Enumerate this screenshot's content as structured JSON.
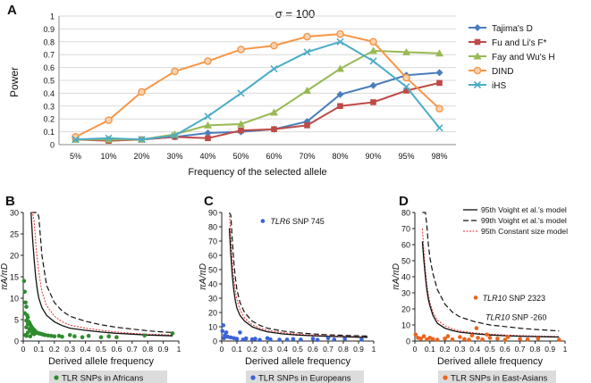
{
  "chart_data": [
    {
      "panel": "A",
      "type": "line",
      "title": "σ = 100",
      "xlabel": "Frequency of the selected allele",
      "ylabel": "Power",
      "categories": [
        "5%",
        "10%",
        "20%",
        "30%",
        "40%",
        "50%",
        "60%",
        "70%",
        "80%",
        "90%",
        "95%",
        "98%"
      ],
      "ylim": [
        0,
        1
      ],
      "yticks": [
        "0",
        "0.1",
        "0.2",
        "0.3",
        "0.4",
        "0.5",
        "0.6",
        "0.7",
        "0.8",
        "0.9",
        "1"
      ],
      "grid": "horizontal",
      "legend_position": "right",
      "series": [
        {
          "name": "Tajima's D",
          "color": "#4a7ebb",
          "marker": "diamond",
          "values": [
            0.04,
            0.04,
            0.04,
            0.06,
            0.09,
            0.1,
            0.12,
            0.18,
            0.39,
            0.46,
            0.54,
            0.56
          ]
        },
        {
          "name": "Fu and Li's F*",
          "color": "#be4b48",
          "marker": "square",
          "values": [
            0.04,
            0.03,
            0.04,
            0.06,
            0.05,
            0.11,
            0.12,
            0.15,
            0.3,
            0.33,
            0.42,
            0.48
          ]
        },
        {
          "name": "Fay and Wu's H",
          "color": "#98b954",
          "marker": "triangle",
          "values": [
            0.04,
            0.04,
            0.04,
            0.08,
            0.15,
            0.16,
            0.25,
            0.42,
            0.59,
            0.73,
            0.72,
            0.71
          ]
        },
        {
          "name": "DIND",
          "color": "#f79646",
          "marker": "circle",
          "values": [
            0.06,
            0.19,
            0.41,
            0.57,
            0.65,
            0.74,
            0.77,
            0.84,
            0.86,
            0.8,
            0.52,
            0.28
          ]
        },
        {
          "name": "iHS",
          "color": "#4bacc6",
          "marker": "x",
          "values": [
            0.04,
            0.05,
            0.04,
            0.07,
            0.22,
            0.4,
            0.59,
            0.72,
            0.8,
            0.65,
            0.45,
            0.13
          ]
        }
      ]
    },
    {
      "panel": "B",
      "type": "scatter",
      "xlabel": "Derived allele frequency",
      "ylabel": "πA/πD",
      "xlim": [
        0,
        1
      ],
      "ylim": [
        0,
        30
      ],
      "xticks": [
        "0",
        "0.1",
        "0.2",
        "0.3",
        "0.4",
        "0.5",
        "0.6",
        "0.7",
        "0.8",
        "0.9",
        "1"
      ],
      "yticks": [
        "0",
        "5",
        "10",
        "15",
        "20",
        "25",
        "30"
      ],
      "legend": "TLR SNPs in Africans",
      "point_color": "#2e8b2e",
      "points": [
        [
          0.005,
          14
        ],
        [
          0.01,
          11.5
        ],
        [
          0.015,
          9
        ],
        [
          0.02,
          8
        ],
        [
          0.01,
          6.5
        ],
        [
          0.025,
          6
        ],
        [
          0.03,
          5.5
        ],
        [
          0.02,
          4.8
        ],
        [
          0.035,
          4.5
        ],
        [
          0.04,
          4.2
        ],
        [
          0.03,
          4
        ],
        [
          0.045,
          3.8
        ],
        [
          0.05,
          3.5
        ],
        [
          0.02,
          3.2
        ],
        [
          0.055,
          3.2
        ],
        [
          0.06,
          3
        ],
        [
          0.04,
          2.8
        ],
        [
          0.065,
          2.7
        ],
        [
          0.07,
          2.6
        ],
        [
          0.05,
          2.4
        ],
        [
          0.075,
          2.3
        ],
        [
          0.08,
          2.2
        ],
        [
          0.03,
          2
        ],
        [
          0.085,
          2
        ],
        [
          0.09,
          1.9
        ],
        [
          0.06,
          1.8
        ],
        [
          0.1,
          1.8
        ],
        [
          0.11,
          1.7
        ],
        [
          0.07,
          1.6
        ],
        [
          0.12,
          1.6
        ],
        [
          0.13,
          1.5
        ],
        [
          0.14,
          1.4
        ],
        [
          0.015,
          1.4
        ],
        [
          0.16,
          1.3
        ],
        [
          0.02,
          1.2
        ],
        [
          0.18,
          1.2
        ],
        [
          0.045,
          1.1
        ],
        [
          0.2,
          1.1
        ],
        [
          0.23,
          1.2
        ],
        [
          0.25,
          1
        ],
        [
          0.3,
          1.4
        ],
        [
          0.33,
          1.1
        ],
        [
          0.38,
          0.9
        ],
        [
          0.42,
          1.2
        ],
        [
          0.5,
          0.9
        ],
        [
          0.55,
          1.1
        ],
        [
          0.6,
          0.9
        ],
        [
          0.78,
          1.3
        ],
        [
          0.96,
          1.8
        ]
      ],
      "curves": {
        "x": [
          0.05,
          0.06,
          0.07,
          0.08,
          0.09,
          0.1,
          0.12,
          0.15,
          0.2,
          0.25,
          0.3,
          0.4,
          0.5,
          0.6,
          0.7,
          0.8,
          0.9,
          0.96
        ],
        "voight95": [
          30,
          24,
          19,
          15,
          12,
          10,
          7.8,
          6,
          4.5,
          3.6,
          3,
          2.5,
          2.1,
          1.8,
          1.6,
          1.4,
          1.3,
          1.2
        ],
        "voight99": [
          30,
          30,
          30,
          30,
          30,
          29,
          20,
          13,
          9,
          7,
          5.8,
          4.6,
          3.8,
          3.2,
          2.8,
          2.4,
          2.1,
          2
        ],
        "constant95": [
          30,
          30,
          28,
          23,
          19,
          16,
          11.5,
          8.3,
          5.8,
          4.5,
          3.7,
          3,
          2.5,
          2.1,
          1.8,
          1.6,
          1.5,
          1.4
        ]
      }
    },
    {
      "panel": "C",
      "type": "scatter",
      "xlabel": "Derived allele frequency",
      "ylabel": "πA/πD",
      "xlim": [
        0,
        1
      ],
      "ylim": [
        0,
        90
      ],
      "xticks": [
        "0",
        "0.1",
        "0.2",
        "0.3",
        "0.4",
        "0.5",
        "0.6",
        "0.7",
        "0.8",
        "0.9",
        "1"
      ],
      "yticks": [
        "0",
        "10",
        "20",
        "30",
        "40",
        "50",
        "60",
        "70",
        "80",
        "90"
      ],
      "legend": "TLR SNPs in Europeans",
      "point_color": "#3a63d8",
      "annotation": {
        "gene": "TLR6",
        "text": "SNP 745"
      },
      "points": [
        [
          0.27,
          84
        ],
        [
          0.01,
          11
        ],
        [
          0.005,
          7
        ],
        [
          0.03,
          6
        ],
        [
          0.02,
          4
        ],
        [
          0.04,
          3
        ],
        [
          0.06,
          2.5
        ],
        [
          0.08,
          2
        ],
        [
          0.015,
          2
        ],
        [
          0.1,
          1.5
        ],
        [
          0.12,
          6
        ],
        [
          0.14,
          1
        ],
        [
          0.16,
          1.8
        ],
        [
          0.2,
          1.2
        ],
        [
          0.22,
          1.6
        ],
        [
          0.25,
          0.8
        ],
        [
          0.3,
          2
        ],
        [
          0.32,
          1.2
        ],
        [
          0.38,
          0.9
        ],
        [
          0.43,
          1
        ],
        [
          0.47,
          1.4
        ],
        [
          0.52,
          1
        ],
        [
          0.6,
          1.6
        ],
        [
          0.63,
          0.8
        ],
        [
          0.7,
          2
        ],
        [
          0.74,
          1
        ],
        [
          0.81,
          1.4
        ],
        [
          0.92,
          1
        ]
      ],
      "curves": {
        "x": [
          0.05,
          0.06,
          0.07,
          0.08,
          0.09,
          0.1,
          0.12,
          0.15,
          0.2,
          0.25,
          0.3,
          0.4,
          0.5,
          0.6,
          0.7,
          0.8,
          0.9,
          0.96
        ],
        "voight95": [
          79,
          60,
          45,
          35,
          28,
          23,
          18,
          14,
          10,
          8,
          6.5,
          5,
          4.2,
          3.7,
          3.3,
          3,
          2.7,
          2.6
        ],
        "voight99": [
          90,
          88,
          70,
          55,
          44,
          36,
          27,
          20,
          14,
          11,
          9,
          7,
          5.8,
          5,
          4.4,
          4,
          3.7,
          3.5
        ],
        "constant95": [
          90,
          72,
          55,
          43,
          35,
          29,
          22,
          16,
          11.5,
          9,
          7.5,
          5.8,
          4.8,
          4.1,
          3.6,
          3.3,
          3,
          2.8
        ]
      }
    },
    {
      "panel": "D",
      "type": "scatter",
      "xlabel": "Derived allele frequency",
      "ylabel": "πA/πD",
      "xlim": [
        0,
        1
      ],
      "ylim": [
        0,
        80
      ],
      "xticks": [
        "0",
        "0.1",
        "0.2",
        "0.3",
        "0.4",
        "0.5",
        "0.6",
        "0.7",
        "0.8",
        "0.9",
        "1"
      ],
      "yticks": [
        "0",
        "10",
        "20",
        "30",
        "40",
        "50",
        "60",
        "70",
        "80"
      ],
      "legend": "TLR SNPs in East-Asians",
      "point_color": "#e8641e",
      "annotations": [
        {
          "gene": "TLR10",
          "text": "SNP 2323"
        },
        {
          "gene": "TLR10",
          "text": "SNP -260"
        }
      ],
      "curve_legend": [
        "95th Voight et al.'s model",
        "99th Voight et al.'s model",
        "95th Constant size model"
      ],
      "points": [
        [
          0.405,
          27
        ],
        [
          0.41,
          8
        ],
        [
          0.005,
          4
        ],
        [
          0.02,
          2
        ],
        [
          0.04,
          1.5
        ],
        [
          0.06,
          3
        ],
        [
          0.08,
          1
        ],
        [
          0.1,
          2
        ],
        [
          0.12,
          1.2
        ],
        [
          0.15,
          0.8
        ],
        [
          0.2,
          1.5
        ],
        [
          0.22,
          3
        ],
        [
          0.25,
          1
        ],
        [
          0.3,
          2.5
        ],
        [
          0.33,
          1.2
        ],
        [
          0.36,
          0.8
        ],
        [
          0.38,
          3.5
        ],
        [
          0.42,
          2
        ],
        [
          0.45,
          1
        ],
        [
          0.48,
          4
        ],
        [
          0.5,
          2
        ],
        [
          0.55,
          1.5
        ],
        [
          0.6,
          0.8
        ],
        [
          0.62,
          2.5
        ],
        [
          0.7,
          1.2
        ],
        [
          0.75,
          1
        ],
        [
          0.82,
          1.5
        ],
        [
          0.96,
          0.8
        ]
      ],
      "curves": {
        "x": [
          0.05,
          0.06,
          0.07,
          0.08,
          0.09,
          0.1,
          0.12,
          0.15,
          0.2,
          0.25,
          0.3,
          0.4,
          0.5,
          0.6,
          0.7,
          0.8,
          0.9,
          0.96
        ],
        "voight95": [
          62,
          50,
          40,
          32,
          26,
          22,
          16,
          11,
          8,
          6.5,
          5.5,
          4.5,
          3.8,
          3.3,
          3,
          2.8,
          2.6,
          2.5
        ],
        "voight99": [
          80,
          80,
          80,
          72,
          60,
          52,
          42,
          32,
          23,
          18,
          15,
          12,
          10,
          9,
          8,
          7.2,
          6.6,
          6.3
        ],
        "constant95": [
          70,
          56,
          44,
          35,
          29,
          24,
          18,
          13,
          9.5,
          7.5,
          6.3,
          5,
          4.3,
          3.8,
          3.4,
          3.1,
          2.9,
          2.8
        ]
      }
    }
  ]
}
